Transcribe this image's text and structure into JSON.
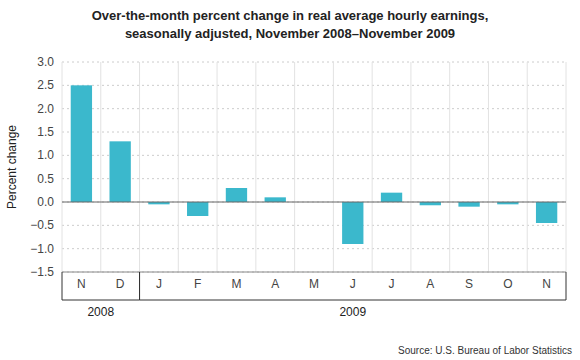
{
  "chart_data": {
    "type": "bar",
    "title": "Over-the-month percent change in real average hourly earnings,",
    "subtitle": "seasonally adjusted, November 2008–November 2009",
    "categories": [
      "N",
      "D",
      "J",
      "F",
      "M",
      "A",
      "M",
      "J",
      "J",
      "A",
      "S",
      "O",
      "N"
    ],
    "values": [
      2.5,
      1.3,
      -0.05,
      -0.3,
      0.3,
      0.1,
      0.0,
      -0.9,
      0.2,
      -0.07,
      -0.1,
      -0.05,
      -0.45
    ],
    "color": "#3bb8cc",
    "y_label": "Percent change",
    "ylim": [
      -1.5,
      3.0
    ],
    "yticks": [
      {
        "value": -1.5,
        "label": "−1.5"
      },
      {
        "value": -1.0,
        "label": "−1.0"
      },
      {
        "value": -0.5,
        "label": "−0.5"
      },
      {
        "value": 0.0,
        "label": "0.0"
      },
      0.5,
      {
        "value": 1.0,
        "label": "1.0"
      },
      1.5,
      {
        "value": 2.0,
        "label": "2.0"
      },
      2.5,
      {
        "value": 3.0,
        "label": "3.0"
      }
    ],
    "grid": true,
    "annotations": [
      {
        "text": "2008",
        "span": [
          0,
          1
        ]
      },
      {
        "text": "2009",
        "span": [
          2,
          12
        ]
      }
    ],
    "source": "Source: U.S. Bureau of Labor Statistics"
  }
}
